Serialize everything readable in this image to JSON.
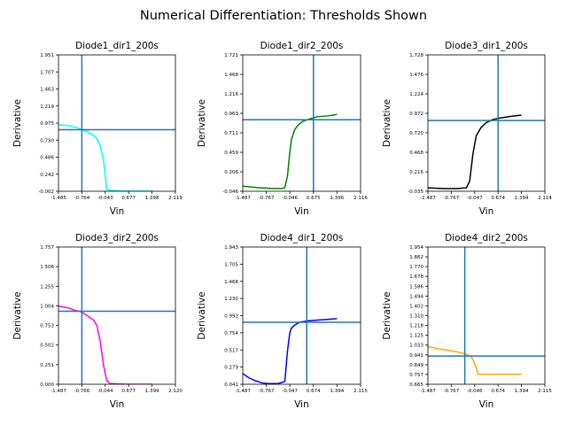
{
  "figure": {
    "title": "Numerical Differentiation: Thresholds Shown",
    "threshold_color": "#1f77b4"
  },
  "chart_data": [
    {
      "type": "line",
      "title": "Diode1_dir1_200s",
      "xlabel": "Vin",
      "ylabel": "Derivative",
      "xlim": [
        -1.485,
        2.119
      ],
      "ylim": [
        -0.002,
        1.951
      ],
      "xticks": [
        "-1.485",
        "-0.764",
        "-0.043",
        "0.677",
        "1.398",
        "2.119"
      ],
      "yticks": [
        "-0.002",
        "0.242",
        "0.486",
        "0.730",
        "0.975",
        "1.219",
        "1.463",
        "1.707",
        "1.951"
      ],
      "color": "#00ffff",
      "threshold": {
        "x": -0.764,
        "y": 0.88
      },
      "series": [
        {
          "x": [
            -1.485,
            -1.2,
            -1.0,
            -0.8,
            -0.6,
            -0.4,
            -0.3,
            -0.2,
            -0.1,
            -0.05,
            0.0,
            0.1,
            0.3,
            0.6,
            1.0,
            1.398
          ],
          "values": [
            0.95,
            0.94,
            0.92,
            0.89,
            0.85,
            0.8,
            0.75,
            0.65,
            0.45,
            0.25,
            0.03,
            0.01,
            0.005,
            0.0,
            0.0,
            0.0
          ]
        }
      ]
    },
    {
      "type": "line",
      "title": "Diode1_dir2_200s",
      "xlabel": "Vin",
      "ylabel": "Derivative",
      "xlim": [
        -1.487,
        2.116
      ],
      "ylim": [
        -0.046,
        1.721
      ],
      "xticks": [
        "-1.487",
        "-0.767",
        "-0.046",
        "0.675",
        "1.396",
        "2.116"
      ],
      "yticks": [
        "-0.046",
        "0.206",
        "0.459",
        "0.711",
        "0.963",
        "1.216",
        "1.468",
        "1.721"
      ],
      "color": "#008000",
      "threshold": {
        "x": 0.675,
        "y": 0.88
      },
      "series": [
        {
          "x": [
            -1.487,
            -1.0,
            -0.6,
            -0.3,
            -0.2,
            -0.12,
            -0.05,
            0.0,
            0.1,
            0.2,
            0.35,
            0.55,
            0.8,
            1.1,
            1.396
          ],
          "values": [
            0.02,
            0.0,
            -0.01,
            -0.01,
            0.0,
            0.15,
            0.45,
            0.62,
            0.75,
            0.81,
            0.86,
            0.89,
            0.92,
            0.93,
            0.95
          ]
        }
      ]
    },
    {
      "type": "line",
      "title": "Diode3_dir1_200s",
      "xlabel": "Vin",
      "ylabel": "Derivative",
      "xlim": [
        -1.487,
        2.114
      ],
      "ylim": [
        -0.035,
        1.728
      ],
      "xticks": [
        "-1.487",
        "-0.767",
        "-0.047",
        "0.674",
        "1.394",
        "2.114"
      ],
      "yticks": [
        "-0.035",
        "0.216",
        "0.468",
        "0.720",
        "0.972",
        "1.224",
        "1.476",
        "1.728"
      ],
      "color": "#000000",
      "threshold": {
        "x": 0.674,
        "y": 0.88
      },
      "series": [
        {
          "x": [
            -1.487,
            -1.0,
            -0.6,
            -0.3,
            -0.2,
            -0.1,
            0.0,
            0.15,
            0.3,
            0.5,
            0.7,
            1.0,
            1.394
          ],
          "values": [
            0.01,
            0.0,
            0.0,
            0.01,
            0.1,
            0.45,
            0.68,
            0.79,
            0.85,
            0.89,
            0.91,
            0.93,
            0.95
          ]
        }
      ]
    },
    {
      "type": "line",
      "title": "Diode3_dir2_200s",
      "xlabel": "Vin",
      "ylabel": "Derivative",
      "xlim": [
        -1.487,
        2.12
      ],
      "ylim": [
        0.0,
        1.757
      ],
      "xticks": [
        "-1.487",
        "-0.766",
        "-0.044",
        "0.677",
        "1.399",
        "2.120"
      ],
      "yticks": [
        "0.000",
        "0.251",
        "0.502",
        "0.753",
        "1.004",
        "1.255",
        "1.506",
        "1.757"
      ],
      "color": "#ff00ff",
      "threshold": {
        "x": -0.766,
        "y": 0.935
      },
      "series": [
        {
          "x": [
            -1.487,
            -1.2,
            -1.0,
            -0.8,
            -0.6,
            -0.4,
            -0.3,
            -0.2,
            -0.1,
            0.0,
            0.1,
            0.3,
            0.6,
            1.0,
            1.399
          ],
          "values": [
            1.0,
            0.98,
            0.95,
            0.93,
            0.88,
            0.82,
            0.75,
            0.55,
            0.25,
            0.05,
            0.01,
            0.005,
            0.0,
            0.0,
            0.0
          ]
        }
      ]
    },
    {
      "type": "line",
      "title": "Diode4_dir1_200s",
      "xlabel": "Vin",
      "ylabel": "Derivative",
      "xlim": [
        -1.487,
        2.115
      ],
      "ylim": [
        0.041,
        1.943
      ],
      "xticks": [
        "-1.487",
        "-0.767",
        "-0.047",
        "0.674",
        "1.394",
        "2.115"
      ],
      "yticks": [
        "0.041",
        "0.279",
        "0.517",
        "0.754",
        "0.992",
        "1.230",
        "1.468",
        "1.705",
        "1.943"
      ],
      "color": "#0000ff",
      "threshold": {
        "x": 0.47,
        "y": 0.9
      },
      "series": [
        {
          "x": [
            -1.487,
            -1.3,
            -1.1,
            -0.9,
            -0.7,
            -0.4,
            -0.2,
            -0.12,
            -0.05,
            0.0,
            0.1,
            0.25,
            0.5,
            0.8,
            1.1,
            1.394
          ],
          "values": [
            0.19,
            0.13,
            0.09,
            0.06,
            0.05,
            0.05,
            0.08,
            0.5,
            0.75,
            0.82,
            0.86,
            0.9,
            0.92,
            0.93,
            0.94,
            0.95
          ]
        }
      ]
    },
    {
      "type": "line",
      "title": "Diode4_dir2_200s",
      "xlabel": "Vin",
      "ylabel": "Derivative",
      "xlim": [
        -1.487,
        2.115
      ],
      "ylim": [
        0.665,
        1.954
      ],
      "xticks": [
        "-1.487",
        "-0.767",
        "-0.046",
        "0.674",
        "1.394",
        "2.115"
      ],
      "yticks": [
        "0.665",
        "0.757",
        "0.849",
        "0.941",
        "1.033",
        "1.125",
        "1.218",
        "1.310",
        "1.402",
        "1.494",
        "1.586",
        "1.678",
        "1.770",
        "1.862",
        "1.954"
      ],
      "color": "#ffa500",
      "threshold": {
        "x": -0.35,
        "y": 0.93
      },
      "series": [
        {
          "x": [
            -1.487,
            -1.2,
            -0.9,
            -0.6,
            -0.4,
            -0.3,
            -0.2,
            -0.15,
            -0.1,
            -0.05,
            0.0,
            0.05,
            0.3,
            0.7,
            1.1,
            1.394
          ],
          "values": [
            1.02,
            1.0,
            0.985,
            0.97,
            0.955,
            0.945,
            0.93,
            0.92,
            0.9,
            0.86,
            0.82,
            0.76,
            0.76,
            0.76,
            0.76,
            0.76
          ]
        }
      ]
    }
  ]
}
